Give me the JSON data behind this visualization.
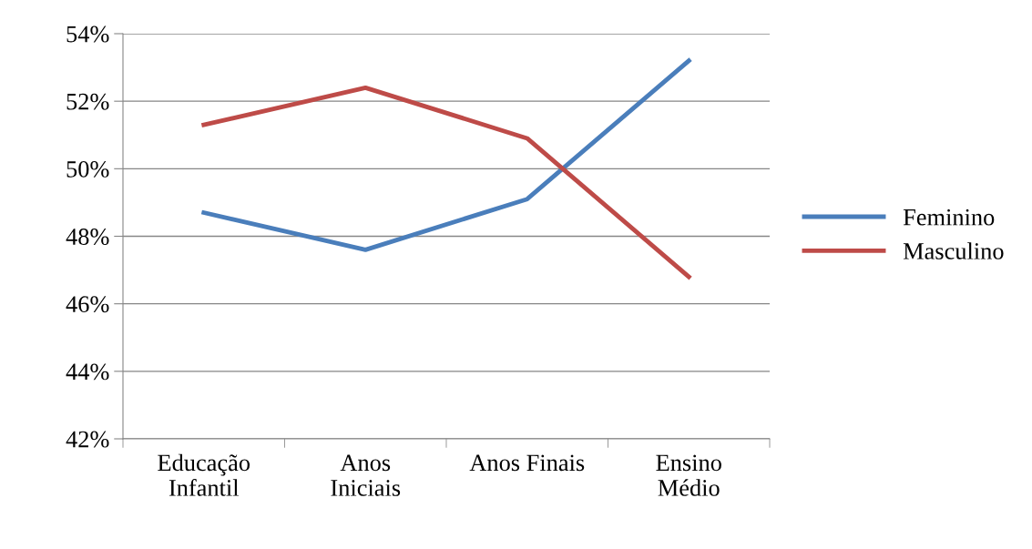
{
  "chart_data": {
    "type": "line",
    "categories": [
      "Educação\nInfantil",
      "Anos\nIniciais",
      "Anos Finais",
      "Ensino\nMédio"
    ],
    "series": [
      {
        "name": "Feminino",
        "color": "#4a7ebb",
        "values": [
          48.7,
          47.6,
          49.1,
          53.2
        ]
      },
      {
        "name": "Masculino",
        "color": "#be4b48",
        "values": [
          51.3,
          52.4,
          50.9,
          46.8
        ]
      }
    ],
    "ylim": [
      42,
      54
    ],
    "yticks": [
      {
        "value": 42,
        "label": "42%"
      },
      {
        "value": 44,
        "label": "44%"
      },
      {
        "value": 46,
        "label": "46%"
      },
      {
        "value": 48,
        "label": "48%"
      },
      {
        "value": 50,
        "label": "50%"
      },
      {
        "value": 52,
        "label": "52%"
      },
      {
        "value": 54,
        "label": "54%"
      }
    ],
    "grid": "y",
    "legend": "right",
    "marker": "none",
    "line_style": "solid"
  }
}
